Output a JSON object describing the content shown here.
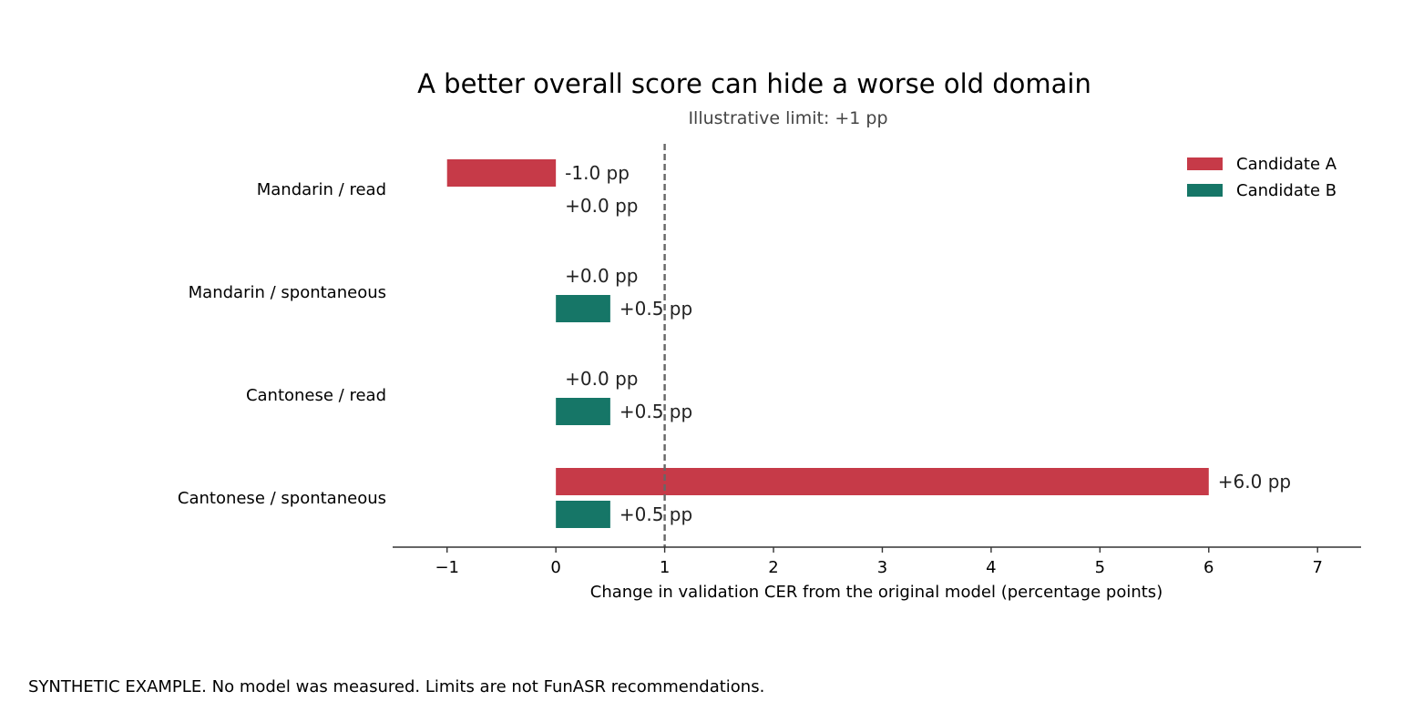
{
  "chart_data": {
    "type": "bar",
    "orientation": "horizontal",
    "title": "A better overall score can hide a worse old domain",
    "subtitle": "Illustrative limit: +1 pp",
    "xlabel": "Change in validation CER from the original model (percentage points)",
    "ylabel": "",
    "categories": [
      "Mandarin / read",
      "Mandarin / spontaneous",
      "Cantonese / read",
      "Cantonese / spontaneous"
    ],
    "series": [
      {
        "name": "Candidate A",
        "color": "#c63a48",
        "values": [
          -1.0,
          0.0,
          0.0,
          6.0
        ],
        "labels": [
          "-1.0 pp",
          "+0.0 pp",
          "+0.0 pp",
          "+6.0 pp"
        ]
      },
      {
        "name": "Candidate B",
        "color": "#167667",
        "values": [
          0.0,
          0.5,
          0.5,
          0.5
        ],
        "labels": [
          "+0.0 pp",
          "+0.5 pp",
          "+0.5 pp",
          "+0.5 pp"
        ]
      }
    ],
    "xlim": [
      -1.5,
      7.4
    ],
    "xticks": [
      -1,
      0,
      1,
      2,
      3,
      4,
      5,
      6,
      7
    ],
    "xtick_labels": [
      "−1",
      "0",
      "1",
      "2",
      "3",
      "4",
      "5",
      "6",
      "7"
    ],
    "reference_line": {
      "x": 1,
      "style": "dashed",
      "color": "#666666"
    },
    "legend": {
      "placement": "top-right"
    },
    "grid": false
  },
  "footer": "SYNTHETIC EXAMPLE. No model was measured. Limits are not FunASR recommendations."
}
